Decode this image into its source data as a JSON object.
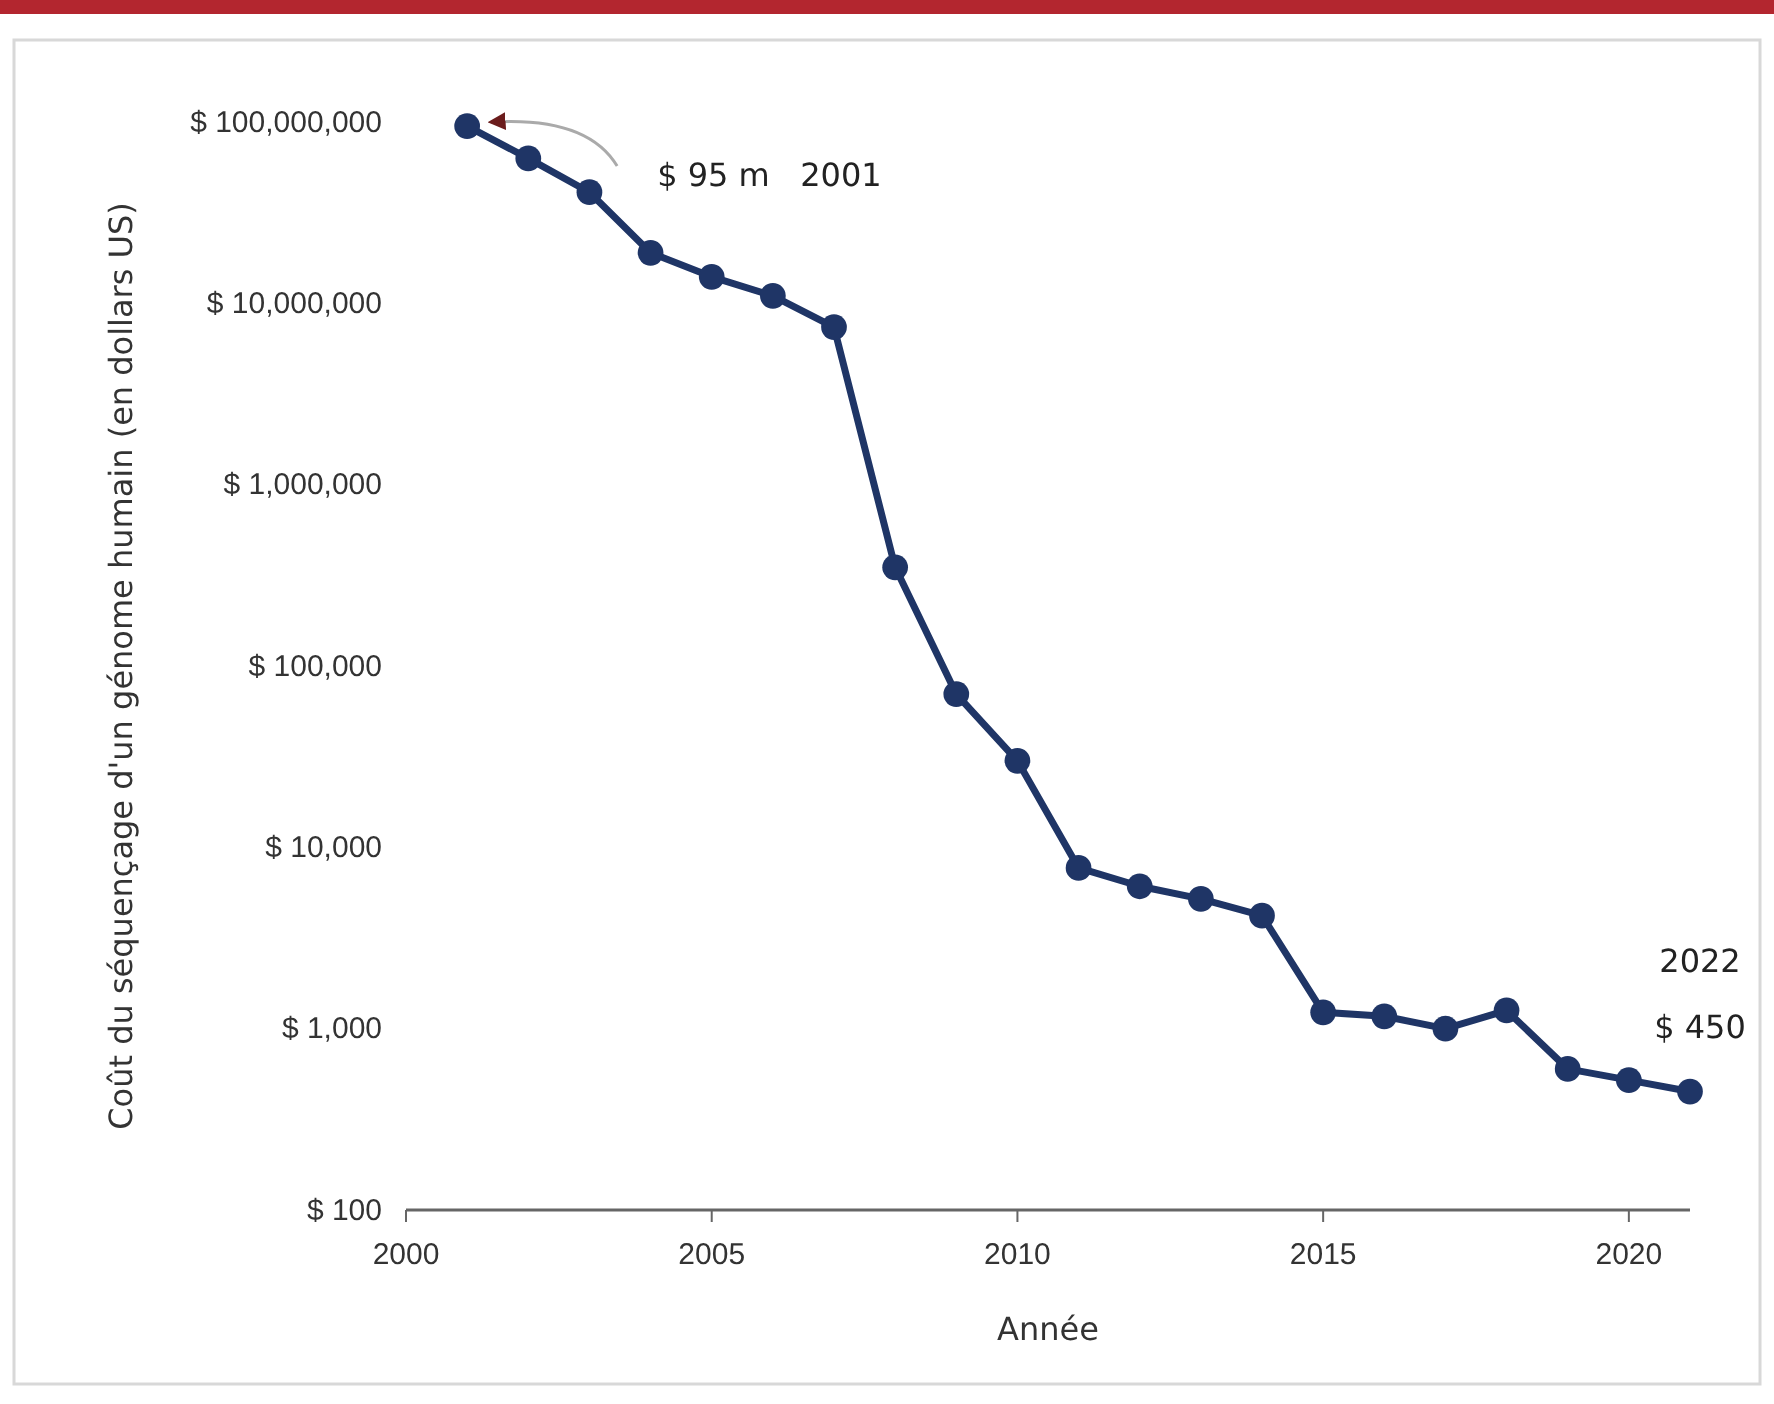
{
  "chart_data": {
    "type": "line",
    "xlabel": "Année",
    "ylabel": "Coût du séquençage d'un génome humain (en dollars US)",
    "x": [
      2001,
      2002,
      2003,
      2004,
      2005,
      2006,
      2007,
      2008,
      2009,
      2010,
      2011,
      2012,
      2013,
      2014,
      2015,
      2016,
      2017,
      2018,
      2019,
      2020,
      2021
    ],
    "series": [
      {
        "color": "#1f3566",
        "values": [
          95000000,
          63000000,
          41000000,
          19000000,
          14000000,
          11000000,
          7400000,
          350000,
          70000,
          30000,
          7700,
          6100,
          5200,
          4200,
          1230,
          1170,
          1000,
          1260,
          600,
          520,
          450
        ]
      }
    ],
    "log": "y",
    "marker": "circle",
    "line_style": "solid",
    "grid": false,
    "xlim": [
      2000,
      2021
    ],
    "xticks": [
      2000,
      2005,
      2010,
      2015,
      2020
    ],
    "ylim": [
      100,
      100000000
    ],
    "yticks": [
      {
        "value": 100,
        "label": "$ 100"
      },
      {
        "value": 1000,
        "label": "$ 1,000"
      },
      {
        "value": 10000,
        "label": "$ 10,000"
      },
      {
        "value": 100000,
        "label": "$ 100,000"
      },
      {
        "value": 1000000,
        "label": "$ 1,000,000"
      },
      {
        "value": 10000000,
        "label": "$ 10,000,000"
      },
      {
        "value": 100000000,
        "label": "$ 100,000,000"
      }
    ],
    "annotations": [
      "$ 95 m   2001",
      "2022",
      "$ 450"
    ]
  }
}
